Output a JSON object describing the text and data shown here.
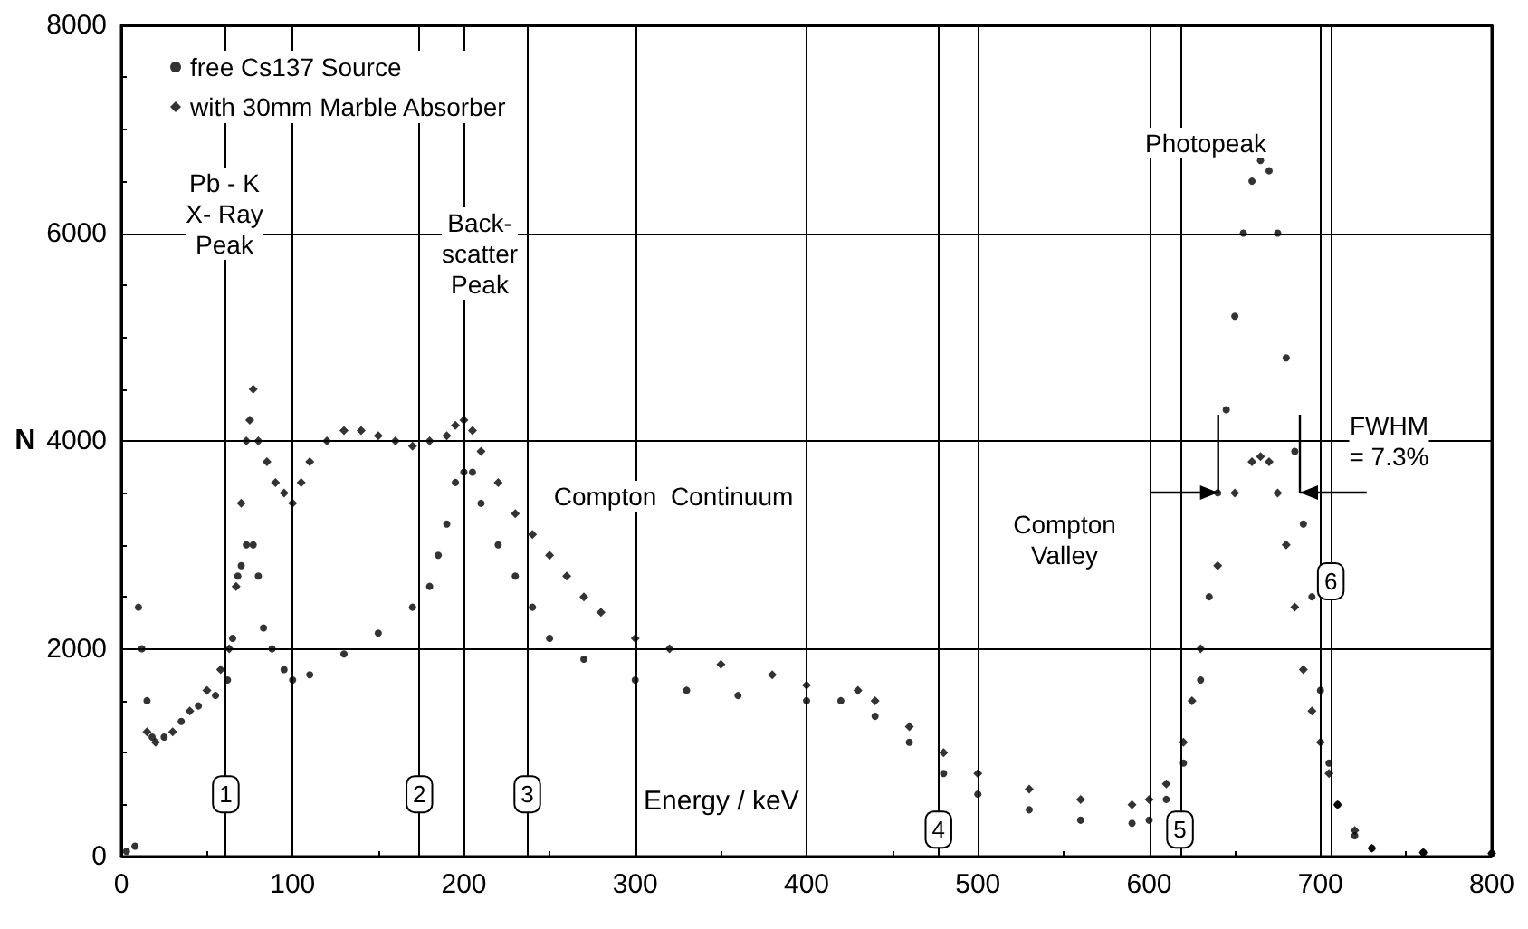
{
  "chart_data": {
    "type": "scatter",
    "xlabel": "Energy / keV",
    "ylabel": "N",
    "xlim": [
      0,
      800
    ],
    "xticks": [
      0,
      100,
      200,
      300,
      400,
      500,
      600,
      700,
      800
    ],
    "ylim": [
      0,
      8000
    ],
    "yticks": [
      0,
      2000,
      4000,
      6000,
      8000
    ],
    "grid": true,
    "legend": "top left",
    "series": [
      {
        "name": "free Cs137 Source",
        "color": "#000000",
        "marker": "circle",
        "x": [
          3,
          8,
          10,
          12,
          15,
          18,
          25,
          35,
          45,
          55,
          62,
          65,
          68,
          70,
          73,
          77,
          80,
          83,
          88,
          95,
          100,
          110,
          130,
          150,
          170,
          180,
          185,
          190,
          195,
          200,
          205,
          210,
          220,
          230,
          240,
          250,
          270,
          300,
          330,
          360,
          400,
          420,
          440,
          460,
          480,
          500,
          530,
          560,
          590,
          600,
          610,
          620,
          630,
          635,
          640,
          645,
          650,
          655,
          660,
          665,
          670,
          675,
          680,
          685,
          690,
          695,
          700,
          705,
          710,
          720,
          730,
          760,
          800
        ],
        "values": [
          50,
          100,
          2400,
          2000,
          1500,
          1150,
          1150,
          1300,
          1450,
          1550,
          1700,
          2100,
          2700,
          2800,
          3000,
          3000,
          2700,
          2200,
          2000,
          1800,
          1700,
          1750,
          1950,
          2150,
          2400,
          2600,
          2900,
          3200,
          3600,
          3700,
          3700,
          3400,
          3000,
          2700,
          2400,
          2100,
          1900,
          1700,
          1600,
          1550,
          1500,
          1500,
          1350,
          1100,
          800,
          600,
          450,
          350,
          320,
          350,
          550,
          900,
          1700,
          2500,
          3500,
          4300,
          5200,
          6000,
          6500,
          6700,
          6600,
          6000,
          4800,
          3900,
          3200,
          2500,
          1600,
          900,
          500,
          200,
          80,
          40,
          30
        ]
      },
      {
        "name": "with 30mm Marble Absorber",
        "color": "#000000",
        "marker": "diamond",
        "x": [
          15,
          20,
          30,
          40,
          50,
          58,
          63,
          67,
          70,
          73,
          75,
          77,
          80,
          85,
          90,
          95,
          100,
          105,
          110,
          120,
          130,
          140,
          150,
          160,
          170,
          180,
          190,
          195,
          200,
          205,
          210,
          220,
          230,
          240,
          250,
          260,
          270,
          280,
          300,
          320,
          350,
          380,
          400,
          430,
          440,
          460,
          480,
          500,
          530,
          560,
          590,
          600,
          610,
          620,
          625,
          630,
          640,
          650,
          660,
          665,
          670,
          675,
          680,
          685,
          690,
          695,
          700,
          705,
          710,
          720,
          730,
          760,
          800
        ],
        "values": [
          1200,
          1100,
          1200,
          1400,
          1600,
          1800,
          2000,
          2600,
          3400,
          4000,
          4200,
          4500,
          4000,
          3800,
          3600,
          3500,
          3400,
          3600,
          3800,
          4000,
          4100,
          4100,
          4050,
          4000,
          3950,
          4000,
          4050,
          4150,
          4200,
          4100,
          3900,
          3600,
          3300,
          3100,
          2900,
          2700,
          2500,
          2350,
          2100,
          2000,
          1850,
          1750,
          1650,
          1600,
          1500,
          1250,
          1000,
          800,
          650,
          550,
          500,
          550,
          700,
          1100,
          1500,
          2000,
          2800,
          3500,
          3800,
          3850,
          3800,
          3500,
          3000,
          2400,
          1800,
          1400,
          1100,
          800,
          500,
          250,
          80,
          40,
          30
        ]
      }
    ],
    "ref_lines": [
      {
        "axis": "x",
        "value": 61
      },
      {
        "axis": "x",
        "value": 174
      },
      {
        "axis": "x",
        "value": 237
      },
      {
        "axis": "x",
        "value": 477
      },
      {
        "axis": "x",
        "value": 618
      },
      {
        "axis": "x",
        "value": 706
      }
    ],
    "annotations": [
      "Pb - K\nX- Ray\nPeak",
      "Back-\nscatter\nPeak",
      "Compton  Continuum",
      "Compton\nValley",
      "Photopeak",
      {
        "text": "FWHM\n= 7.3%",
        "x": 740,
        "y": 4000
      },
      {
        "text": "1",
        "x": 61,
        "y": 600
      },
      {
        "text": "2",
        "x": 174,
        "y": 600
      },
      {
        "text": "3",
        "x": 237,
        "y": 600
      },
      {
        "text": "4",
        "x": 477,
        "y": 260
      },
      {
        "text": "5",
        "x": 618,
        "y": 260
      },
      {
        "text": "6",
        "x": 706,
        "y": 2650
      }
    ]
  }
}
